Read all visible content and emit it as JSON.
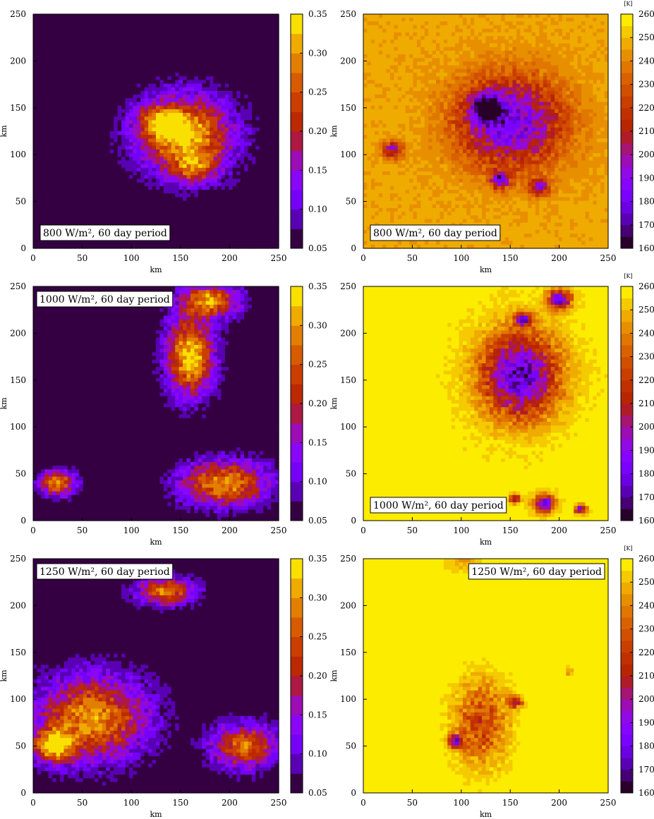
{
  "chart_data": [
    {
      "type": "heatmap",
      "label": "800 W/m², 60 day period",
      "label_position": "bottom-left",
      "xlabel": "km",
      "ylabel": "km",
      "xlim": [
        0,
        250
      ],
      "ylim": [
        0,
        250
      ],
      "xticks": [
        "0",
        "50",
        "100",
        "150",
        "200",
        "250"
      ],
      "yticks": [
        "0",
        "50",
        "100",
        "150",
        "200",
        "250"
      ],
      "colorbar_unit": "",
      "colorbar_ticks": [
        "0.05",
        "0.10",
        "0.15",
        "0.20",
        "0.25",
        "0.30",
        "0.35"
      ],
      "colorbar_range": [
        0.05,
        0.35
      ],
      "palette": "gnuplot",
      "background_value": 0.05,
      "features": [
        {
          "x": 155,
          "y": 120,
          "sx": 32,
          "sy": 28,
          "peak": 0.34
        },
        {
          "x": 130,
          "y": 135,
          "sx": 15,
          "sy": 11,
          "peak": 0.22
        },
        {
          "x": 165,
          "y": 85,
          "sx": 14,
          "sy": 10,
          "peak": 0.18
        }
      ]
    },
    {
      "type": "heatmap",
      "label": "800 W/m², 60 day period",
      "label_position": "bottom-left",
      "xlabel": "km",
      "ylabel": "km",
      "xlim": [
        0,
        250
      ],
      "ylim": [
        0,
        250
      ],
      "xticks": [
        "0",
        "50",
        "100",
        "150",
        "200",
        "250"
      ],
      "yticks": [
        "0",
        "50",
        "100",
        "150",
        "200",
        "250"
      ],
      "colorbar_unit": "[K]",
      "colorbar_ticks": [
        "160",
        "170",
        "180",
        "190",
        "200",
        "210",
        "220",
        "230",
        "240",
        "250",
        "260"
      ],
      "colorbar_range": [
        160,
        260
      ],
      "palette": "gnuplot",
      "background_value": 246,
      "features": [
        {
          "x": 150,
          "y": 135,
          "sx": 36,
          "sy": 32,
          "peak": 180
        },
        {
          "x": 125,
          "y": 150,
          "sx": 10,
          "sy": 10,
          "peak": 172
        },
        {
          "x": 140,
          "y": 73,
          "sx": 6,
          "sy": 6,
          "peak": 178
        },
        {
          "x": 30,
          "y": 105,
          "sx": 7,
          "sy": 6,
          "peak": 198
        },
        {
          "x": 180,
          "y": 65,
          "sx": 7,
          "sy": 6,
          "peak": 196
        }
      ]
    },
    {
      "type": "heatmap",
      "label": "1000 W/m², 60 day period",
      "label_position": "top-left",
      "xlabel": "km",
      "ylabel": "km",
      "xlim": [
        0,
        250
      ],
      "ylim": [
        0,
        250
      ],
      "xticks": [
        "0",
        "50",
        "100",
        "150",
        "200",
        "250"
      ],
      "yticks": [
        "0",
        "50",
        "100",
        "150",
        "200",
        "250"
      ],
      "colorbar_unit": "",
      "colorbar_ticks": [
        "0.05",
        "0.10",
        "0.15",
        "0.20",
        "0.25",
        "0.30",
        "0.35"
      ],
      "colorbar_range": [
        0.05,
        0.35
      ],
      "palette": "gnuplot",
      "background_value": 0.05,
      "features": [
        {
          "x": 160,
          "y": 175,
          "sx": 16,
          "sy": 28,
          "peak": 0.35
        },
        {
          "x": 195,
          "y": 40,
          "sx": 30,
          "sy": 16,
          "peak": 0.3
        },
        {
          "x": 25,
          "y": 40,
          "sx": 12,
          "sy": 9,
          "peak": 0.3
        },
        {
          "x": 180,
          "y": 235,
          "sx": 20,
          "sy": 12,
          "peak": 0.3
        }
      ]
    },
    {
      "type": "heatmap",
      "label": "1000 W/m², 60 day period",
      "label_position": "bottom-left",
      "xlabel": "km",
      "ylabel": "km",
      "xlim": [
        0,
        250
      ],
      "ylim": [
        0,
        250
      ],
      "xticks": [
        "0",
        "50",
        "100",
        "150",
        "200",
        "250"
      ],
      "yticks": [
        "0",
        "50",
        "100",
        "150",
        "200",
        "250"
      ],
      "colorbar_unit": "[K]",
      "colorbar_ticks": [
        "160",
        "170",
        "180",
        "190",
        "200",
        "210",
        "220",
        "230",
        "240",
        "250",
        "260"
      ],
      "colorbar_range": [
        160,
        260
      ],
      "palette": "gnuplot",
      "background_value": 257,
      "features": [
        {
          "x": 160,
          "y": 155,
          "sx": 26,
          "sy": 30,
          "peak": 172
        },
        {
          "x": 200,
          "y": 236,
          "sx": 8,
          "sy": 7,
          "peak": 172
        },
        {
          "x": 163,
          "y": 215,
          "sx": 6,
          "sy": 5,
          "peak": 180
        },
        {
          "x": 185,
          "y": 18,
          "sx": 7,
          "sy": 6,
          "peak": 172
        },
        {
          "x": 155,
          "y": 23,
          "sx": 3,
          "sy": 3,
          "peak": 182
        },
        {
          "x": 222,
          "y": 12,
          "sx": 4,
          "sy": 3,
          "peak": 182
        }
      ]
    },
    {
      "type": "heatmap",
      "label": "1250 W/m², 60 day period",
      "label_position": "top-left",
      "xlabel": "km",
      "ylabel": "km",
      "xlim": [
        0,
        250
      ],
      "ylim": [
        0,
        250
      ],
      "xticks": [
        "0",
        "50",
        "100",
        "150",
        "200",
        "250"
      ],
      "yticks": [
        "0",
        "50",
        "100",
        "150",
        "200",
        "250"
      ],
      "colorbar_unit": "",
      "colorbar_ticks": [
        "0.05",
        "0.10",
        "0.15",
        "0.20",
        "0.25",
        "0.30",
        "0.35"
      ],
      "colorbar_range": [
        0.05,
        0.35
      ],
      "palette": "gnuplot",
      "background_value": 0.05,
      "features": [
        {
          "x": 60,
          "y": 80,
          "sx": 38,
          "sy": 30,
          "peak": 0.3
        },
        {
          "x": 20,
          "y": 50,
          "sx": 14,
          "sy": 12,
          "peak": 0.3
        },
        {
          "x": 215,
          "y": 50,
          "sx": 22,
          "sy": 16,
          "peak": 0.28
        },
        {
          "x": 135,
          "y": 215,
          "sx": 20,
          "sy": 10,
          "peak": 0.28
        }
      ]
    },
    {
      "type": "heatmap",
      "label": "1250 W/m², 60 day period",
      "label_position": "top-right",
      "xlabel": "km",
      "ylabel": "km",
      "xlim": [
        0,
        250
      ],
      "ylim": [
        0,
        250
      ],
      "xticks": [
        "0",
        "50",
        "100",
        "150",
        "200",
        "250"
      ],
      "yticks": [
        "0",
        "50",
        "100",
        "150",
        "200",
        "250"
      ],
      "colorbar_unit": "[K]",
      "colorbar_ticks": [
        "160",
        "170",
        "180",
        "190",
        "200",
        "210",
        "220",
        "230",
        "240",
        "250",
        "260"
      ],
      "colorbar_range": [
        160,
        260
      ],
      "palette": "gnuplot",
      "background_value": 259,
      "features": [
        {
          "x": 120,
          "y": 75,
          "sx": 18,
          "sy": 30,
          "peak": 222
        },
        {
          "x": 95,
          "y": 55,
          "sx": 5,
          "sy": 5,
          "peak": 185
        },
        {
          "x": 155,
          "y": 97,
          "sx": 5,
          "sy": 4,
          "peak": 200
        },
        {
          "x": 210,
          "y": 130,
          "sx": 3,
          "sy": 3,
          "peak": 240
        },
        {
          "x": 100,
          "y": 245,
          "sx": 12,
          "sy": 6,
          "peak": 246
        }
      ]
    }
  ]
}
